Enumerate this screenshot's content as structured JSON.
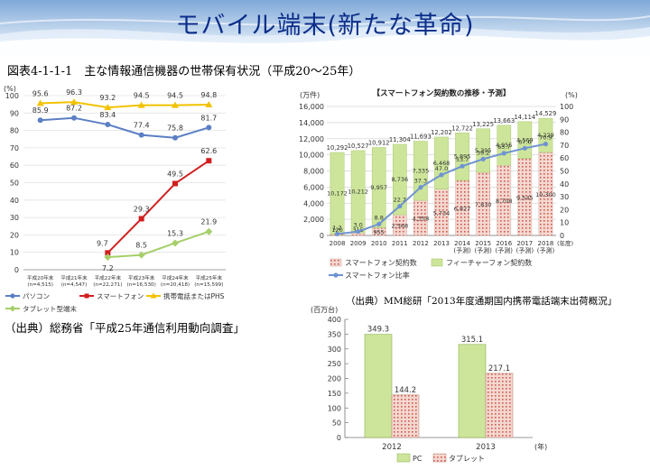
{
  "page": {
    "title": "モバイル端末(新たな革命)",
    "figure_caption": "図表4-1-1-1　主な情報通信機器の世帯保有状況（平成20～25年）",
    "source_left": "（出典）総務省「平成25年通信利用動向調査」",
    "source_right": "（出典）MM総研「2013年度通期国内携帯電話端末出荷概況」"
  },
  "colors": {
    "title": "#0d2e8a",
    "pc_line": "#5b7fc4",
    "smartphone_line": "#d11f1f",
    "phs_line": "#f2c200",
    "tablet_line": "#a6cf6a",
    "bar_smartphone": "#f4d7d0",
    "bar_feature": "#cde59a",
    "ratio_line": "#6f93d1"
  },
  "chart_data": [
    {
      "type": "line",
      "unit_label": "(%)",
      "categories": [
        "平成20年末\n(n=4,515)",
        "平成21年末\n(n=4,547)",
        "平成22年末\n(n=22,271)",
        "平成23年末\n(n=16,530)",
        "平成24年末\n(n=20,418)",
        "平成25年末\n(n=15,599)"
      ],
      "ylim": [
        0,
        100
      ],
      "yticks": [
        0,
        10,
        20,
        30,
        40,
        50,
        60,
        70,
        80,
        90,
        100
      ],
      "series": [
        {
          "name": "パソコン",
          "values": [
            85.9,
            87.2,
            83.4,
            77.4,
            75.8,
            81.7
          ]
        },
        {
          "name": "スマートフォン",
          "values": [
            null,
            null,
            9.7,
            29.3,
            49.5,
            62.6
          ]
        },
        {
          "name": "携帯電話またはPHS",
          "values": [
            95.6,
            96.3,
            93.2,
            94.5,
            94.5,
            94.8
          ]
        },
        {
          "name": "タブレット型端末",
          "values": [
            null,
            null,
            7.2,
            8.5,
            15.3,
            21.9
          ]
        }
      ]
    },
    {
      "type": "bar",
      "title": "【スマートフォン契約数の推移・予測】",
      "ylabel_left": "(万件)",
      "ylabel_right": "(%)",
      "xunit": "(年度)",
      "categories": [
        "2008",
        "2009",
        "2010",
        "2011",
        "2012",
        "2013",
        "2014\n(予測)",
        "2015\n(予測)",
        "2016\n(予測)",
        "2017\n(予測)",
        "2018\n(予測)"
      ],
      "ylim": [
        0,
        16000
      ],
      "ylim_right": [
        0,
        100
      ],
      "yticks": [
        "0",
        "2,000",
        "4,000",
        "6,000",
        "8,000",
        "10,000",
        "12,000",
        "14,000",
        "16,000"
      ],
      "yticks_right": [
        "0",
        "10",
        "20",
        "30",
        "40",
        "50",
        "60",
        "70",
        "80",
        "90",
        "100"
      ],
      "series": [
        {
          "name": "スマートフォン契約数",
          "values": [
            120,
            315,
            955,
            2568,
            4358,
            5734,
            6827,
            7830,
            8708,
            9545,
            10300
          ],
          "labels": [
            "120",
            "315",
            "955",
            "2,568",
            "4,358",
            "5,734",
            "6,827",
            "7,830",
            "8,708",
            "9,545",
            "10,300"
          ]
        },
        {
          "name": "フィーチャーフォン契約数",
          "values": [
            10172,
            10212,
            9957,
            8736,
            7335,
            6468,
            5895,
            5395,
            4955,
            4569,
            4229
          ],
          "labels": [
            "10,172",
            "10,212",
            "9,957",
            "8,736",
            "7,335",
            "6,468",
            "5,895",
            "5,395",
            "4,955",
            "4,569",
            "4,229"
          ]
        },
        {
          "name": "スマートフォン比率",
          "values": [
            1.2,
            3.0,
            8.8,
            22.7,
            37.3,
            47.0,
            53.7,
            59.2,
            63.7,
            67.6,
            70.9
          ],
          "labels": [
            "1.2",
            "3.0",
            "8.8",
            "22.7",
            "37.3",
            "47.0",
            "53.7",
            "59.2",
            "63.7",
            "67.6",
            "70.9"
          ]
        }
      ],
      "totals": [
        "10,292",
        "10,527",
        "10,912",
        "11,304",
        "11,693",
        "12,202",
        "12,722",
        "13,225",
        "13,663",
        "14,114",
        "14,529"
      ]
    },
    {
      "type": "bar",
      "ylabel": "(百万台)",
      "xunit": "(年)",
      "categories": [
        "2012",
        "2013"
      ],
      "ylim": [
        0,
        400
      ],
      "yticks": [
        "0",
        "50",
        "100",
        "150",
        "200",
        "250",
        "300",
        "350",
        "400"
      ],
      "series": [
        {
          "name": "PC",
          "values": [
            349.3,
            315.1
          ],
          "labels": [
            "349.3",
            "315.1"
          ]
        },
        {
          "name": "タブレット",
          "values": [
            144.2,
            217.1
          ],
          "labels": [
            "144.2",
            "217.1"
          ]
        }
      ]
    }
  ]
}
